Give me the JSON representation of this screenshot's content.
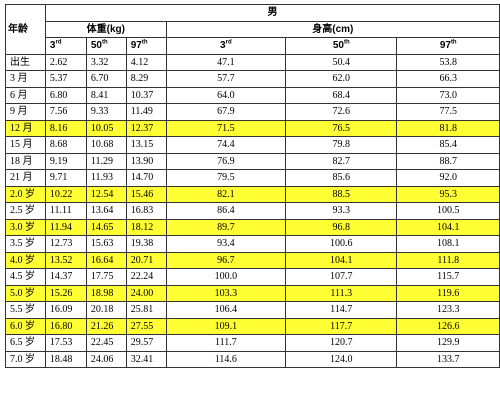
{
  "header": {
    "gender": "男",
    "age_label": "年龄",
    "weight_label": "体重(kg)",
    "height_label": "身高(cm)",
    "percentiles": [
      {
        "num": "3",
        "sup": "rd"
      },
      {
        "num": "50",
        "sup": "th"
      },
      {
        "num": "97",
        "sup": "th"
      }
    ]
  },
  "colors": {
    "highlight": "#ffff33",
    "border": "#333333"
  },
  "rows": [
    {
      "age": "出生",
      "w3": "2.62",
      "w50": "3.32",
      "w97": "4.12",
      "h3": "47.1",
      "h50": "50.4",
      "h97": "53.8",
      "highlight": false
    },
    {
      "age": "3 月",
      "w3": "5.37",
      "w50": "6.70",
      "w97": "8.29",
      "h3": "57.7",
      "h50": "62.0",
      "h97": "66.3",
      "highlight": false
    },
    {
      "age": "6 月",
      "w3": "6.80",
      "w50": "8.41",
      "w97": "10.37",
      "h3": "64.0",
      "h50": "68.4",
      "h97": "73.0",
      "highlight": false
    },
    {
      "age": "9 月",
      "w3": "7.56",
      "w50": "9.33",
      "w97": "11.49",
      "h3": "67.9",
      "h50": "72.6",
      "h97": "77.5",
      "highlight": false
    },
    {
      "age": "12 月",
      "w3": "8.16",
      "w50": "10.05",
      "w97": "12.37",
      "h3": "71.5",
      "h50": "76.5",
      "h97": "81.8",
      "highlight": true
    },
    {
      "age": "15 月",
      "w3": "8.68",
      "w50": "10.68",
      "w97": "13.15",
      "h3": "74.4",
      "h50": "79.8",
      "h97": "85.4",
      "highlight": false
    },
    {
      "age": "18 月",
      "w3": "9.19",
      "w50": "11.29",
      "w97": "13.90",
      "h3": "76.9",
      "h50": "82.7",
      "h97": "88.7",
      "highlight": false
    },
    {
      "age": "21 月",
      "w3": "9.71",
      "w50": "11.93",
      "w97": "14.70",
      "h3": "79.5",
      "h50": "85.6",
      "h97": "92.0",
      "highlight": false
    },
    {
      "age": "2.0 岁",
      "w3": "10.22",
      "w50": "12.54",
      "w97": "15.46",
      "h3": "82.1",
      "h50": "88.5",
      "h97": "95.3",
      "highlight": true
    },
    {
      "age": "2.5 岁",
      "w3": "11.11",
      "w50": "13.64",
      "w97": "16.83",
      "h3": "86.4",
      "h50": "93.3",
      "h97": "100.5",
      "highlight": false
    },
    {
      "age": "3.0 岁",
      "w3": "11.94",
      "w50": "14.65",
      "w97": "18.12",
      "h3": "89.7",
      "h50": "96.8",
      "h97": "104.1",
      "highlight": true
    },
    {
      "age": "3.5 岁",
      "w3": "12.73",
      "w50": "15.63",
      "w97": "19.38",
      "h3": "93.4",
      "h50": "100.6",
      "h97": "108.1",
      "highlight": false
    },
    {
      "age": "4.0 岁",
      "w3": "13.52",
      "w50": "16.64",
      "w97": "20.71",
      "h3": "96.7",
      "h50": "104.1",
      "h97": "111.8",
      "highlight": true
    },
    {
      "age": "4.5 岁",
      "w3": "14.37",
      "w50": "17.75",
      "w97": "22.24",
      "h3": "100.0",
      "h50": "107.7",
      "h97": "115.7",
      "highlight": false
    },
    {
      "age": "5.0 岁",
      "w3": "15.26",
      "w50": "18.98",
      "w97": "24.00",
      "h3": "103.3",
      "h50": "111.3",
      "h97": "119.6",
      "highlight": true
    },
    {
      "age": "5.5 岁",
      "w3": "16.09",
      "w50": "20.18",
      "w97": "25.81",
      "h3": "106.4",
      "h50": "114.7",
      "h97": "123.3",
      "highlight": false
    },
    {
      "age": "6.0 岁",
      "w3": "16.80",
      "w50": "21.26",
      "w97": "27.55",
      "h3": "109.1",
      "h50": "117.7",
      "h97": "126.6",
      "highlight": true
    },
    {
      "age": "6.5 岁",
      "w3": "17.53",
      "w50": "22.45",
      "w97": "29.57",
      "h3": "111.7",
      "h50": "120.7",
      "h97": "129.9",
      "highlight": false
    },
    {
      "age": "7.0 岁",
      "w3": "18.48",
      "w50": "24.06",
      "w97": "32.41",
      "h3": "114.6",
      "h50": "124.0",
      "h97": "133.7",
      "highlight": false
    }
  ]
}
